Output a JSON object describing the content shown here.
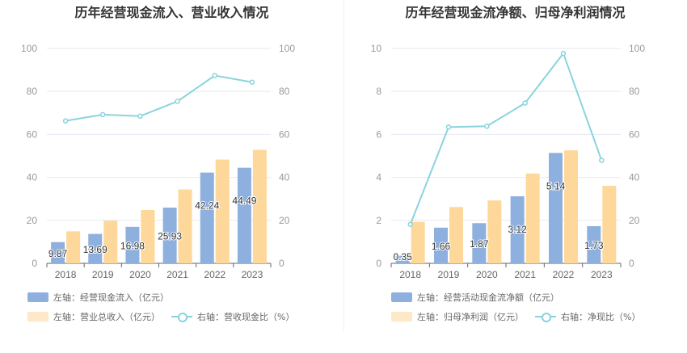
{
  "charts": [
    {
      "title": "历年经营现金流入、营业收入情况",
      "legend": {
        "bar1": "左轴：经营现金流入（亿元）",
        "bar2": "左轴：营业总收入（亿元）",
        "line": "右轴：营收现金比（%）"
      }
    },
    {
      "title": "历年经营现金流净额、归母净利润情况",
      "legend": {
        "bar1": "左轴：经营活动现金流净额（亿元）",
        "bar2": "左轴：归母净利润（亿元）",
        "line": "右轴：净现比（%）"
      }
    }
  ],
  "colors": {
    "bar1": "#8eb0de",
    "bar2": "#fdd89a",
    "line": "#8bd3dc",
    "grid": "#e6e9f2",
    "axis_text": "#999999",
    "label": "#333333"
  },
  "chart_data": [
    {
      "type": "bar",
      "title": "历年经营现金流入、营业收入情况",
      "categories": [
        "2018",
        "2019",
        "2020",
        "2021",
        "2022",
        "2023"
      ],
      "left_axis": {
        "min": 0,
        "max": 100,
        "ticks": [
          0,
          20,
          40,
          60,
          80,
          100
        ]
      },
      "right_axis": {
        "min": 0,
        "max": 100,
        "ticks": [
          0,
          20,
          40,
          60,
          80,
          100
        ]
      },
      "series": [
        {
          "name": "左轴：经营现金流入（亿元）",
          "type": "bar",
          "axis": "left",
          "values": [
            9.87,
            13.69,
            16.98,
            25.93,
            42.24,
            44.49
          ],
          "labels": [
            "9.87",
            "13.69",
            "16.98",
            "25.93",
            "42.24",
            "44.49"
          ]
        },
        {
          "name": "左轴：营业总收入（亿元）",
          "type": "bar",
          "axis": "left",
          "values": [
            14.9,
            19.8,
            24.8,
            34.4,
            48.3,
            52.8
          ]
        },
        {
          "name": "右轴：营收现金比（%）",
          "type": "line",
          "axis": "right",
          "values": [
            66.3,
            69.2,
            68.5,
            75.4,
            87.4,
            84.3
          ]
        }
      ],
      "grid": true,
      "legend_position": "bottom-left"
    },
    {
      "type": "bar",
      "title": "历年经营现金流净额、归母净利润情况",
      "categories": [
        "2018",
        "2019",
        "2020",
        "2021",
        "2022",
        "2023"
      ],
      "left_axis": {
        "min": 0,
        "max": 10,
        "ticks": [
          0,
          2,
          4,
          6,
          8,
          10
        ]
      },
      "right_axis": {
        "min": 0,
        "max": 100,
        "ticks": [
          0,
          20,
          40,
          60,
          80,
          100
        ]
      },
      "series": [
        {
          "name": "左轴：经营活动现金流净额（亿元）",
          "type": "bar",
          "axis": "left",
          "values": [
            0.35,
            1.66,
            1.87,
            3.12,
            5.14,
            1.73
          ],
          "labels": [
            "0.35",
            "1.66",
            "1.87",
            "3.12",
            "5.14",
            "1.73"
          ]
        },
        {
          "name": "左轴：归母净利润（亿元）",
          "type": "bar",
          "axis": "left",
          "values": [
            1.93,
            2.62,
            2.93,
            4.18,
            5.26,
            3.61
          ]
        },
        {
          "name": "右轴：净现比（%）",
          "type": "line",
          "axis": "right",
          "values": [
            18.1,
            63.4,
            63.8,
            74.6,
            97.7,
            47.9
          ]
        }
      ],
      "grid": true,
      "legend_position": "bottom-left"
    }
  ]
}
